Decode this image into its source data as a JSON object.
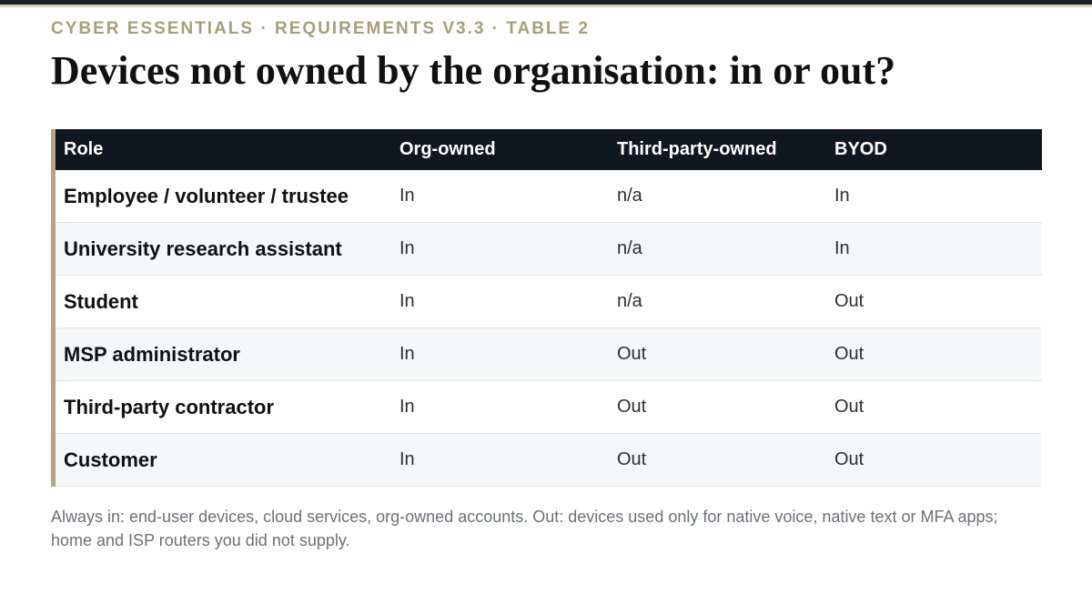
{
  "header": {
    "eyebrow": "CYBER ESSENTIALS · REQUIREMENTS V3.3 · TABLE 2",
    "title": "Devices not owned by the organisation: in or out?"
  },
  "table": {
    "columns": [
      "Role",
      "Org-owned",
      "Third-party-owned",
      "BYOD"
    ],
    "rows": [
      [
        "Employee / volunteer / trustee",
        "In",
        "n/a",
        "In"
      ],
      [
        "University research assistant",
        "In",
        "n/a",
        "In"
      ],
      [
        "Student",
        "In",
        "n/a",
        "Out"
      ],
      [
        "MSP administrator",
        "In",
        "Out",
        "Out"
      ],
      [
        "Third-party contractor",
        "In",
        "Out",
        "Out"
      ],
      [
        "Customer",
        "In",
        "Out",
        "Out"
      ]
    ]
  },
  "footnote": "Always in: end-user devices, cloud services, org-owned accounts. Out: devices used only for native voice, native text or MFA apps; home and ISP routers you did not supply."
}
